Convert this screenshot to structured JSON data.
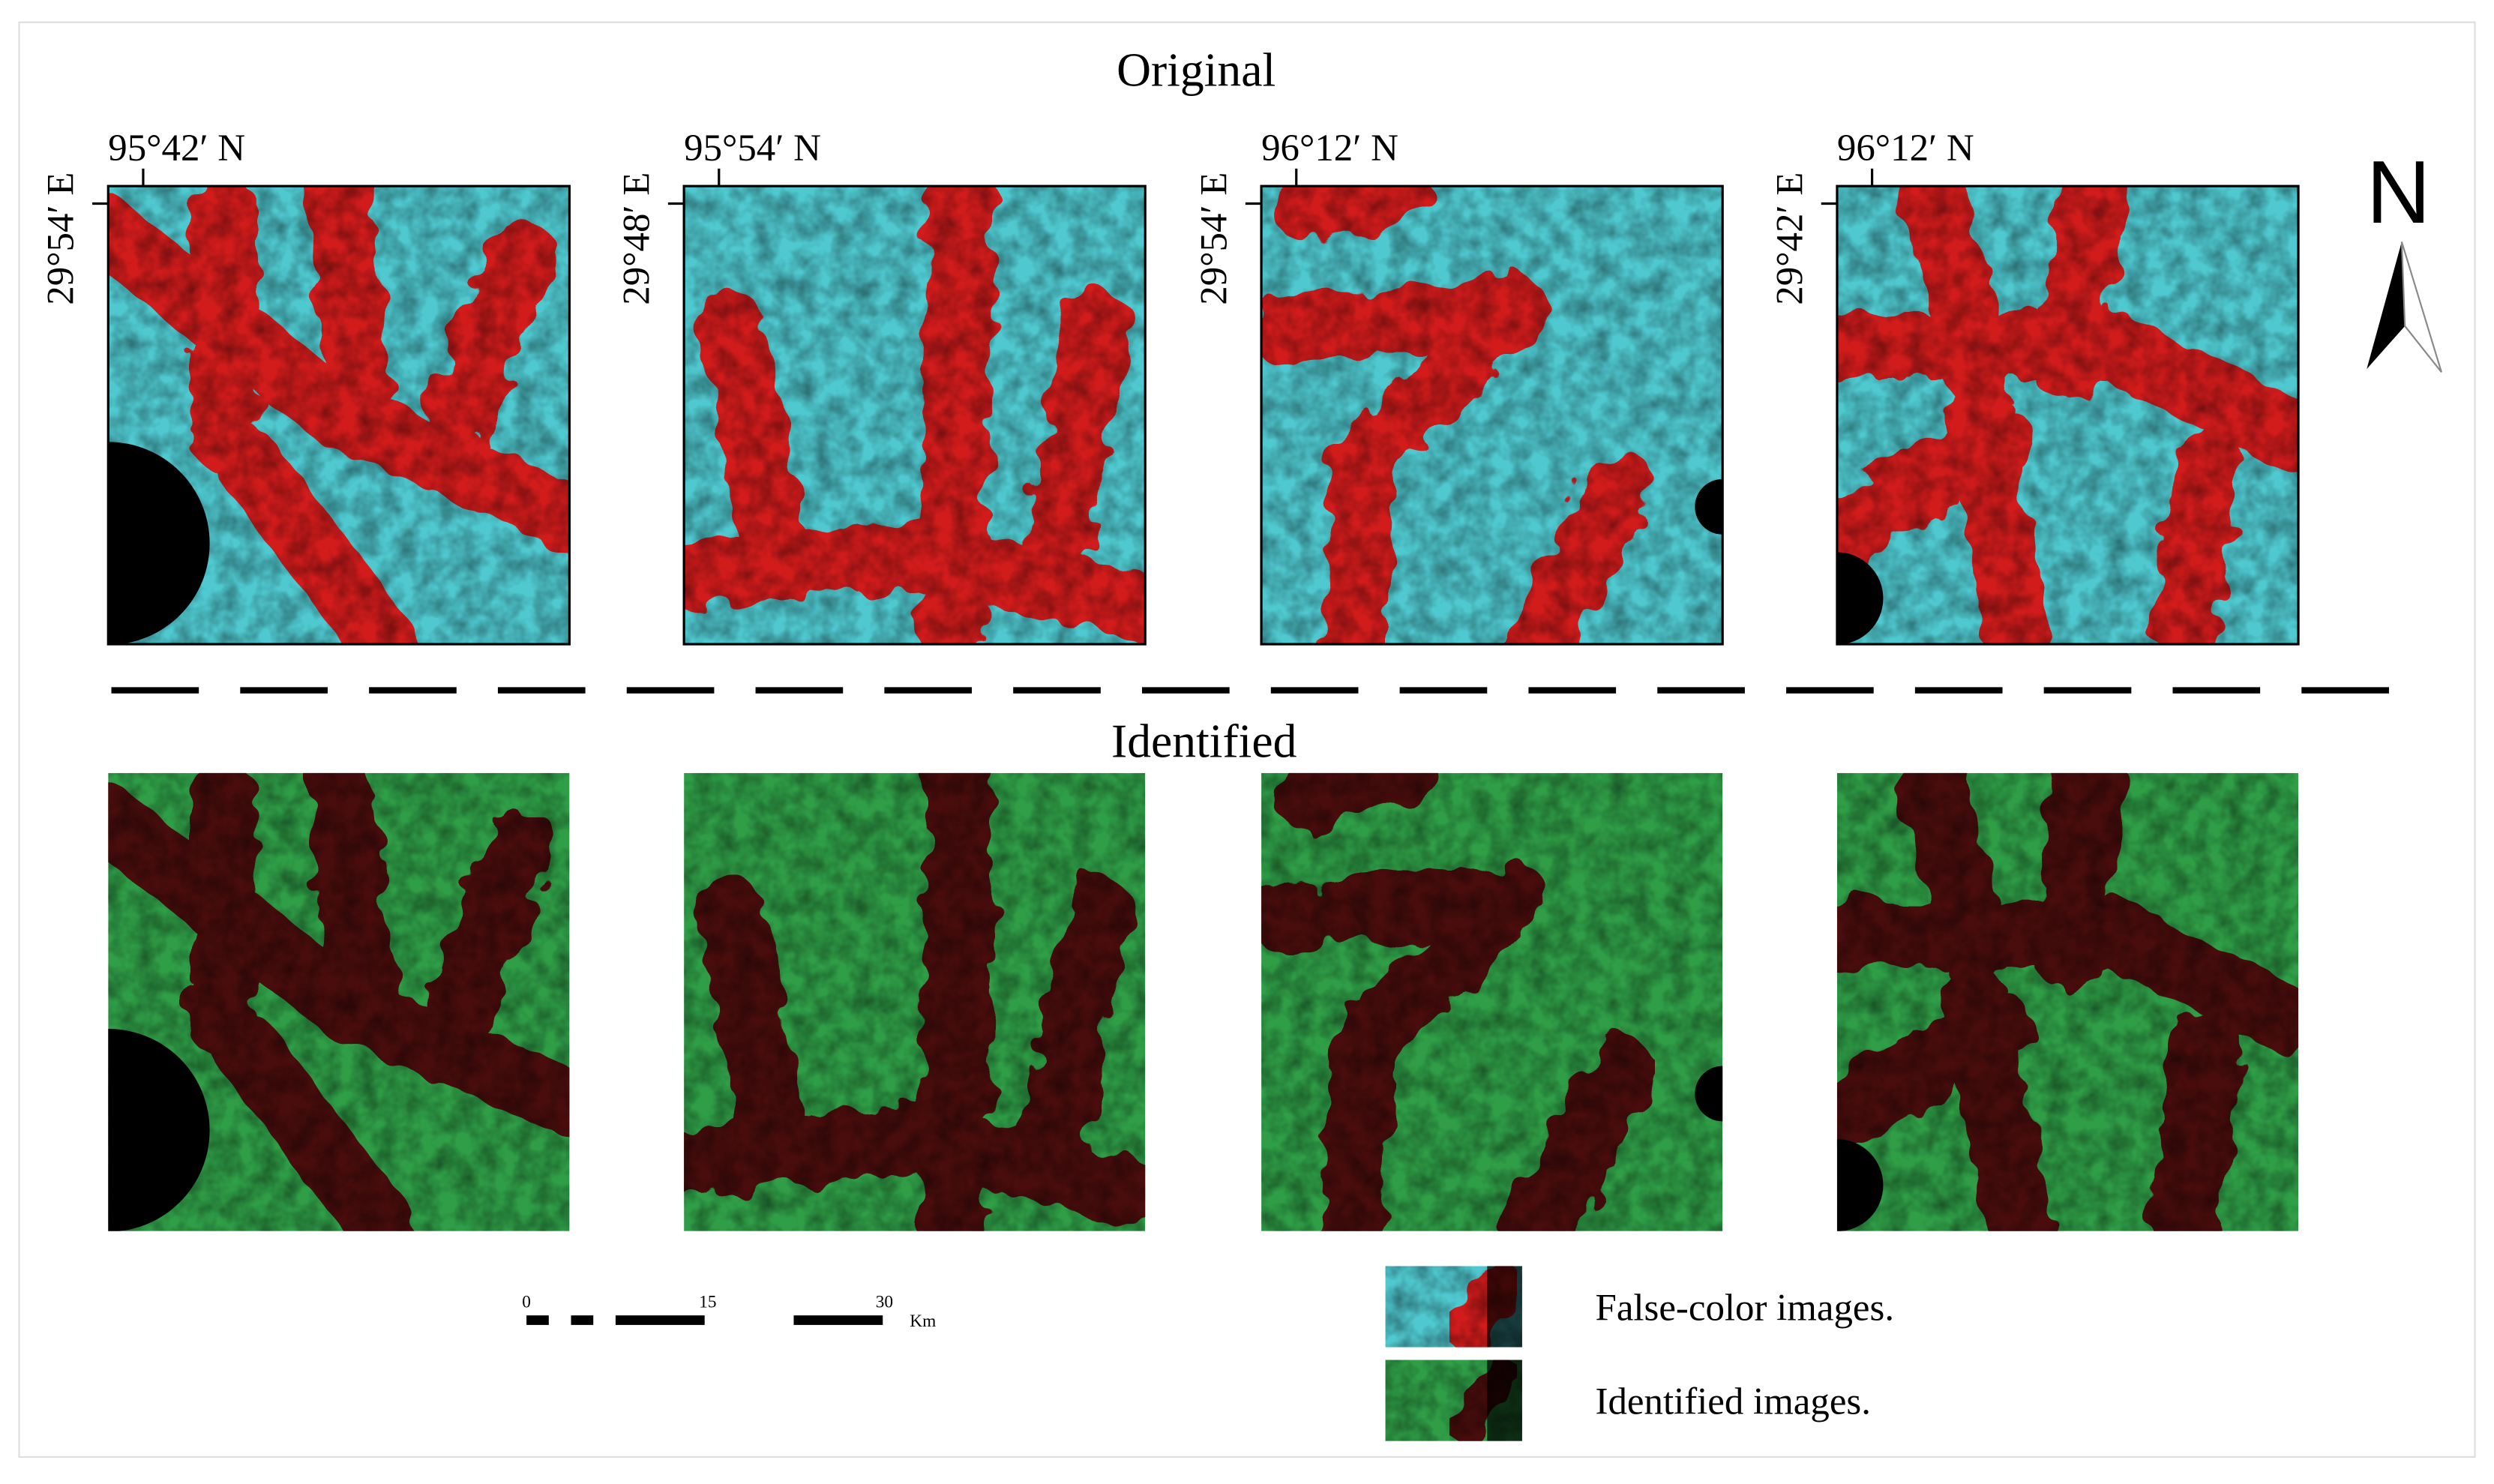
{
  "header": {
    "top_title": "Original",
    "bottom_title": "Identified"
  },
  "panels": [
    {
      "lon": "95°42′ N",
      "lat": "29°54′ E"
    },
    {
      "lon": "95°54′ N",
      "lat": "29°48′ E"
    },
    {
      "lon": "96°12′ N",
      "lat": "29°54′ E"
    },
    {
      "lon": "96°12′ N",
      "lat": "29°42′ E"
    }
  ],
  "north_arrow": {
    "label": "N"
  },
  "scale_bar": {
    "labels": [
      "0",
      "15",
      "30"
    ],
    "unit": "Km"
  },
  "legend": [
    {
      "label": "False-color images."
    },
    {
      "label": "Identified images."
    }
  ]
}
